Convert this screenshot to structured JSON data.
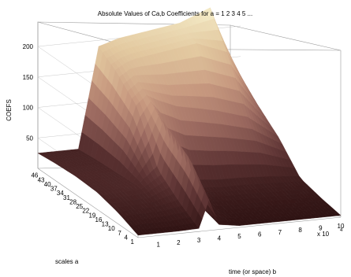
{
  "chart_data": {
    "type": "surface",
    "title": "Absolute Values of Ca,b Coefficients for a =  1 2 3 4 5 ...",
    "xlabel": "time (or space) b",
    "ylabel": "scales a",
    "zlabel": "COEFS",
    "x_ticks": [
      "1",
      "2",
      "3",
      "4",
      "5",
      "6",
      "7",
      "8",
      "9",
      "10"
    ],
    "x_multiplier": "x 10",
    "x_multiplier_exp": "4",
    "y_ticks": [
      "1",
      "4",
      "7",
      "10",
      "13",
      "16",
      "19",
      "22",
      "25",
      "28",
      "31",
      "34",
      "37",
      "40",
      "43",
      "46"
    ],
    "z_ticks": [
      "50",
      "100",
      "150",
      "200"
    ],
    "xlim": [
      0,
      100000
    ],
    "ylim": [
      1,
      48
    ],
    "zlim": [
      0,
      240
    ],
    "grid": true,
    "colormap": "pink",
    "colormap_stops": [
      "#2b1010",
      "#5e3434",
      "#9c6a60",
      "#c89a80",
      "#e3c9a0",
      "#f8f3d0"
    ],
    "profiles": [
      {
        "scale": 1,
        "b": [
          0,
          20000,
          30000,
          35000,
          40000,
          50000,
          60000,
          70000,
          85000,
          100000
        ],
        "value": [
          4,
          4,
          5,
          50,
          8,
          3,
          3,
          3,
          3,
          3
        ]
      },
      {
        "scale": 10,
        "b": [
          0,
          20000,
          30000,
          35000,
          40000,
          50000,
          60000,
          70000,
          85000,
          100000
        ],
        "value": [
          18,
          20,
          26,
          95,
          18,
          10,
          10,
          10,
          10,
          9
        ]
      },
      {
        "scale": 20,
        "b": [
          0,
          20000,
          30000,
          35000,
          40000,
          50000,
          60000,
          70000,
          85000,
          100000
        ],
        "value": [
          28,
          32,
          55,
          120,
          45,
          25,
          22,
          22,
          20,
          18
        ]
      },
      {
        "scale": 30,
        "b": [
          0,
          20000,
          30000,
          35000,
          40000,
          50000,
          60000,
          70000,
          85000,
          100000
        ],
        "value": [
          30,
          30,
          135,
          150,
          140,
          125,
          118,
          110,
          95,
          60
        ]
      },
      {
        "scale": 40,
        "b": [
          0,
          20000,
          30000,
          35000,
          40000,
          50000,
          60000,
          70000,
          85000,
          100000
        ],
        "value": [
          28,
          28,
          170,
          180,
          185,
          190,
          195,
          200,
          180,
          90
        ]
      },
      {
        "scale": 48,
        "b": [
          0,
          20000,
          30000,
          35000,
          40000,
          50000,
          60000,
          70000,
          85000,
          100000
        ],
        "value": [
          25,
          25,
          190,
          195,
          200,
          205,
          210,
          215,
          235,
          100
        ]
      }
    ]
  }
}
